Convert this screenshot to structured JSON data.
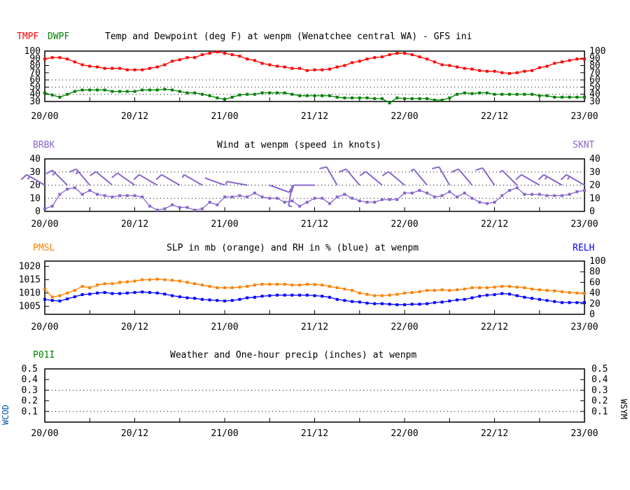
{
  "time_labels": [
    "20/00",
    "20/12",
    "21/00",
    "21/12",
    "22/00",
    "22/12",
    "23/00"
  ],
  "colors": {
    "temp": "#ff0000",
    "dewpoint": "#008000",
    "wind": "#8866cc",
    "slp": "#ff8000",
    "rh": "#0000ff",
    "precip_label": "#008000",
    "wcod_label": "#0055aa"
  },
  "chart_data": [
    {
      "type": "line",
      "title": "Temp and Dewpoint (deg F) at wenpm (Wenatchee central WA) - GFS ini",
      "left_label_1": "TMPF",
      "left_label_2": "DWPF",
      "xlabel": "",
      "ylabel": "deg F",
      "x_step_hours": 1,
      "x_tick_labels": [
        "20/00",
        "20/12",
        "21/00",
        "21/12",
        "22/00",
        "22/12",
        "23/00"
      ],
      "ylim": [
        30,
        100
      ],
      "yticks": [
        "100",
        "90",
        "80",
        "70",
        "60",
        "50",
        "40",
        "30"
      ],
      "grid": "dotted at 30,40,50,60",
      "series": [
        {
          "name": "TMPF",
          "values": [
            89,
            91,
            91,
            89,
            85,
            81,
            79,
            78,
            76,
            76,
            76,
            74,
            74,
            74,
            76,
            78,
            81,
            86,
            88,
            91,
            91,
            95,
            97,
            99,
            97,
            95,
            93,
            89,
            87,
            83,
            81,
            79,
            78,
            76,
            76,
            73,
            74,
            74,
            75,
            78,
            80,
            84,
            86,
            89,
            91,
            92,
            95,
            97,
            97,
            95,
            92,
            89,
            85,
            81,
            80,
            78,
            76,
            75,
            73,
            72,
            72,
            70,
            69,
            70,
            72,
            73,
            77,
            79,
            83,
            85,
            87,
            89,
            89
          ]
        },
        {
          "name": "DWPF",
          "values": [
            42,
            39,
            36,
            40,
            44,
            46,
            46,
            46,
            46,
            44,
            44,
            44,
            44,
            46,
            46,
            46,
            47,
            46,
            44,
            42,
            42,
            40,
            38,
            35,
            33,
            36,
            39,
            40,
            40,
            42,
            42,
            42,
            42,
            40,
            38,
            38,
            38,
            38,
            38,
            36,
            35,
            35,
            35,
            35,
            34,
            34,
            28,
            35,
            34,
            34,
            34,
            34,
            32,
            32,
            35,
            40,
            42,
            41,
            42,
            42,
            40,
            40,
            40,
            40,
            40,
            40,
            38,
            38,
            36,
            36,
            36,
            36,
            36
          ]
        }
      ]
    },
    {
      "type": "line",
      "title": "Wind at  wenpm (speed in knots)",
      "left_label": "BRBK",
      "right_label": "SKNT",
      "ylim": [
        0,
        40
      ],
      "yticks": [
        "40",
        "30",
        "20",
        "10",
        "0"
      ],
      "grid": "dotted at 10,20,30",
      "x_tick_labels": [
        "20/00",
        "20/12",
        "21/00",
        "21/12",
        "22/00",
        "22/12",
        "23/00"
      ],
      "series": [
        {
          "name": "SKNT",
          "values": [
            2,
            4,
            13,
            17,
            18,
            13,
            16,
            13,
            12,
            11,
            12,
            12,
            12,
            11,
            4,
            1,
            2,
            5,
            3,
            3,
            1,
            2,
            7,
            5,
            11,
            11,
            12,
            11,
            14,
            11,
            10,
            10,
            7,
            8,
            4,
            7,
            10,
            10,
            6,
            11,
            13,
            10,
            8,
            7,
            7,
            9,
            9,
            9,
            14,
            14,
            16,
            14,
            11,
            12,
            15,
            11,
            14,
            10,
            7,
            6,
            7,
            12,
            16,
            18,
            13,
            13,
            13,
            12,
            12,
            12,
            13,
            15,
            16
          ]
        }
      ],
      "barbs": {
        "every_hours": 3,
        "directions_deg": [
          300,
          315,
          320,
          310,
          305,
          300,
          300,
          300,
          290,
          280,
          110,
          190,
          270,
          330,
          320,
          310,
          310,
          320,
          330,
          320,
          325,
          315,
          300,
          300,
          300,
          300,
          310,
          300,
          300,
          300,
          320,
          300,
          315,
          310,
          320,
          315,
          320,
          320,
          320,
          300,
          300,
          310,
          310,
          310,
          310
        ],
        "speeds_kt": [
          17,
          13,
          16,
          12,
          12,
          12,
          12,
          4,
          2,
          3,
          3,
          7,
          11,
          12,
          11,
          10,
          8,
          7,
          10,
          11,
          10,
          7,
          9,
          14,
          16,
          12,
          14,
          7,
          7,
          16,
          13,
          12,
          12,
          15,
          14,
          12,
          15,
          12,
          12,
          12,
          12,
          12,
          13,
          15,
          16
        ]
      }
    },
    {
      "type": "line",
      "title": "SLP in mb (orange) and RH in % (blue) at  wenpm",
      "left_label": "PMSL",
      "right_label": "RELH",
      "ylim_left": [
        1002,
        1022
      ],
      "yticks_left": [
        "1020",
        "1015",
        "1010",
        "1005"
      ],
      "ylim_right": [
        0,
        100
      ],
      "yticks_right": [
        "100",
        "80",
        "60",
        "40",
        "20",
        "0"
      ],
      "x_tick_labels": [
        "20/00",
        "20/12",
        "21/00",
        "21/12",
        "22/00",
        "22/12",
        "23/00"
      ],
      "series": [
        {
          "name": "PMSL",
          "axis": "left",
          "values": [
            1011.5,
            1008.5,
            1009,
            1010,
            1011,
            1012.5,
            1012,
            1013,
            1013.5,
            1013.5,
            1014,
            1014.2,
            1014.5,
            1015,
            1015,
            1015.2,
            1015,
            1014.8,
            1014.5,
            1014,
            1013.5,
            1013,
            1012.5,
            1012,
            1012,
            1012,
            1012.2,
            1012.5,
            1013,
            1013.3,
            1013.3,
            1013.3,
            1013.3,
            1013,
            1013,
            1013.3,
            1013.2,
            1013,
            1012.5,
            1012,
            1011.5,
            1011,
            1010,
            1009.5,
            1009,
            1009,
            1009.2,
            1009.5,
            1010,
            1010.2,
            1010.5,
            1011,
            1011,
            1011.2,
            1011,
            1011.2,
            1011.5,
            1012,
            1012,
            1012,
            1012.2,
            1012.5,
            1012.5,
            1012.2,
            1012,
            1011.5,
            1011.2,
            1011,
            1010.8,
            1010.5,
            1010.2,
            1010,
            1009.8
          ]
        },
        {
          "name": "RELH",
          "axis": "right",
          "values": [
            28,
            26,
            25,
            29,
            33,
            37,
            38,
            40,
            41,
            39,
            39,
            40,
            41,
            42,
            41,
            40,
            38,
            35,
            33,
            31,
            30,
            28,
            27,
            26,
            25,
            26,
            28,
            31,
            32,
            34,
            35,
            36,
            36,
            36,
            36,
            36,
            35,
            34,
            32,
            28,
            26,
            24,
            23,
            21,
            20,
            20,
            19,
            18,
            18,
            19,
            19,
            20,
            22,
            23,
            25,
            27,
            28,
            31,
            34,
            36,
            37,
            39,
            38,
            35,
            32,
            30,
            28,
            26,
            24,
            22,
            22,
            22,
            22
          ]
        }
      ]
    },
    {
      "type": "bar",
      "title": "Weather and One-hour precip (inches) at  wenpm",
      "left_label": "P01I",
      "left_side_label": "WCOD",
      "right_side_label": "WSYM",
      "ylim": [
        0,
        0.5
      ],
      "yticks": [
        "0.5",
        "0.4",
        "0.3",
        "0.2",
        "0.1"
      ],
      "grid": "dotted at 0.1,0.3",
      "x_tick_labels": [
        "20/00",
        "20/12",
        "21/00",
        "21/12",
        "22/00",
        "22/12",
        "23/00"
      ],
      "series": [
        {
          "name": "P01I",
          "values": []
        }
      ]
    }
  ]
}
